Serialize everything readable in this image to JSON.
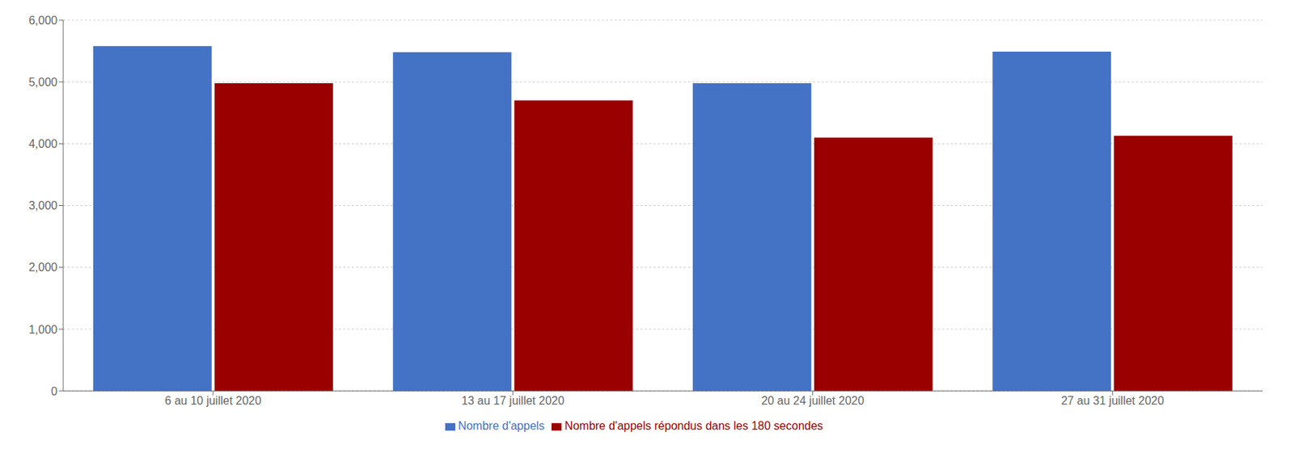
{
  "chart_data": {
    "type": "bar",
    "categories": [
      "6 au 10 juillet 2020",
      "13 au 17 juillet 2020",
      "20 au 24 juillet 2020",
      "27 au 31 juillet 2020"
    ],
    "series": [
      {
        "name": "Nombre d'appels",
        "color": "#4472C4",
        "values": [
          5580,
          5480,
          4980,
          5490
        ]
      },
      {
        "name": "Nombre d'appels répondus dans les 180 secondes",
        "color": "#9B0000",
        "values": [
          4980,
          4700,
          4100,
          4130
        ]
      }
    ],
    "ylim": [
      0,
      6000
    ],
    "yticks": [
      0,
      {
        "value": 1000,
        "label": "1,000"
      },
      {
        "value": 2000,
        "label": "2,000"
      },
      {
        "value": 3000,
        "label": "3,000"
      },
      {
        "value": 4000,
        "label": "4,000"
      },
      {
        "value": 5000,
        "label": "5,000"
      },
      {
        "value": 6000,
        "label": "6,000"
      }
    ],
    "grid": true,
    "legend": "bottom"
  }
}
